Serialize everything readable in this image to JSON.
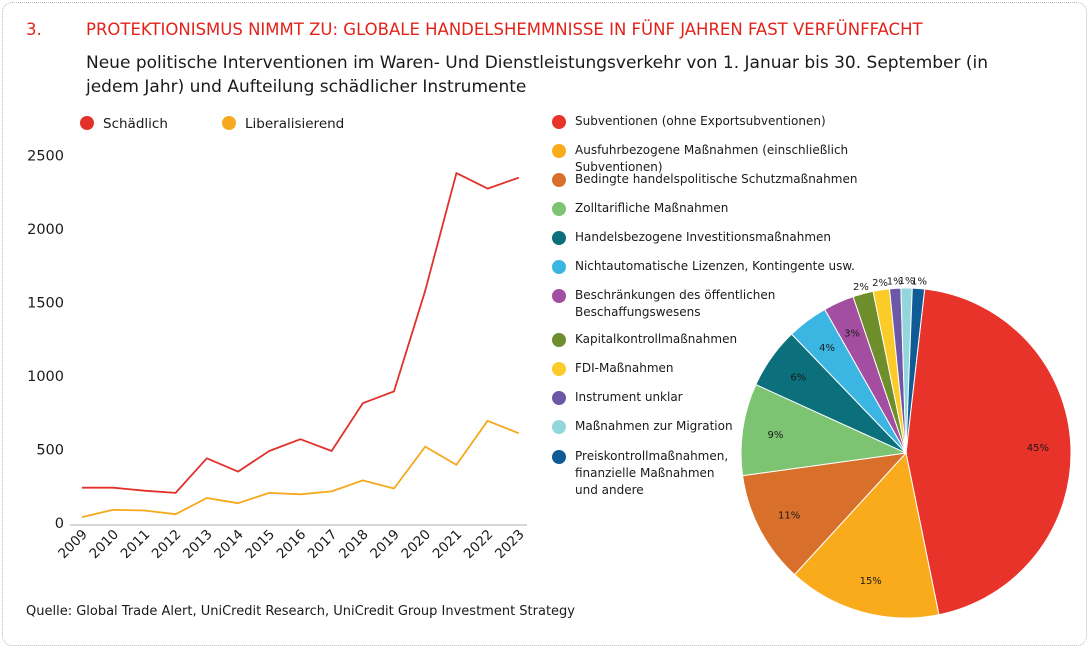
{
  "header": {
    "number": "3.",
    "title": "PROTEKTIONISMUS NIMMT ZU: GLOBALE HANDELSHEMMNISSE IN FÜNF JAHREN FAST VERFÜNFFACHT",
    "subtitle": "Neue politische Interventionen im Waren- Und Dienstleistungsverkehr von 1. Januar bis 30. September (in jedem Jahr) und Aufteilung schädlicher Instrumente"
  },
  "source": "Quelle: Global Trade Alert, UniCredit Research, UniCredit Group Investment Strategy",
  "chart_data": [
    {
      "type": "line",
      "x": [
        "2009",
        "2010",
        "2011",
        "2012",
        "2013",
        "2014",
        "2015",
        "2016",
        "2017",
        "2018",
        "2019",
        "2020",
        "2021",
        "2022",
        "2023"
      ],
      "series": [
        {
          "name": "Schädlich",
          "color": "#e2312b",
          "values": [
            240,
            240,
            220,
            205,
            440,
            350,
            490,
            570,
            490,
            815,
            895,
            1580,
            2380,
            2275,
            2350
          ]
        },
        {
          "name": "Liberalisierend",
          "color": "#f6a81e",
          "values": [
            40,
            90,
            85,
            60,
            170,
            135,
            205,
            195,
            215,
            290,
            235,
            520,
            395,
            695,
            610
          ]
        }
      ],
      "yticks": [
        0,
        500,
        1000,
        1500,
        2000,
        2500
      ],
      "ylim": [
        0,
        2500
      ],
      "legend": "top-left",
      "grid": false
    },
    {
      "type": "pie",
      "slices": [
        {
          "label": "Subventionen (ohne Exportsubventionen)",
          "value": 45,
          "display": "45%",
          "color": "#e8332a"
        },
        {
          "label": "Ausfuhrbezogene Maßnahmen (einschließlich Subventionen)",
          "value": 15,
          "display": "15%",
          "color": "#f9ab1c"
        },
        {
          "label": "Bedingte handelspolitische Schutzmaßnahmen",
          "value": 11,
          "display": "11%",
          "color": "#d8702b"
        },
        {
          "label": "Zolltarifliche Maßnahmen",
          "value": 9,
          "display": "9%",
          "color": "#7cc472"
        },
        {
          "label": "Handelsbezogene Investitionsmaßnahmen",
          "value": 6,
          "display": "6%",
          "color": "#0b6f7c"
        },
        {
          "label": "Nichtautomatische Lizenzen, Kontingente usw.",
          "value": 4,
          "display": "4%",
          "color": "#3bb6e3"
        },
        {
          "label": "Beschränkungen des öffentlichen\nBeschaffungswesens",
          "value": 3,
          "display": "3%",
          "color": "#a34ea0"
        },
        {
          "label": "Kapitalkontrollmaßnahmen",
          "value": 2,
          "display": "2%",
          "color": "#6e8d2b"
        },
        {
          "label": "FDI-Maßnahmen",
          "value": 1.6,
          "display": "2%",
          "color": "#fbcb28"
        },
        {
          "label": "Instrument unklar",
          "value": 1.1,
          "display": "1%",
          "color": "#6d58a8"
        },
        {
          "label": "Maßnahmen zur Migration",
          "value": 1.1,
          "display": "1%",
          "color": "#93d6dc"
        },
        {
          "label": "Preiskontrollmaßnahmen,\nfinanzielle Maßnahmen\nund andere",
          "value": 1.2,
          "display": "1%",
          "color": "#0f5b96"
        }
      ]
    }
  ]
}
